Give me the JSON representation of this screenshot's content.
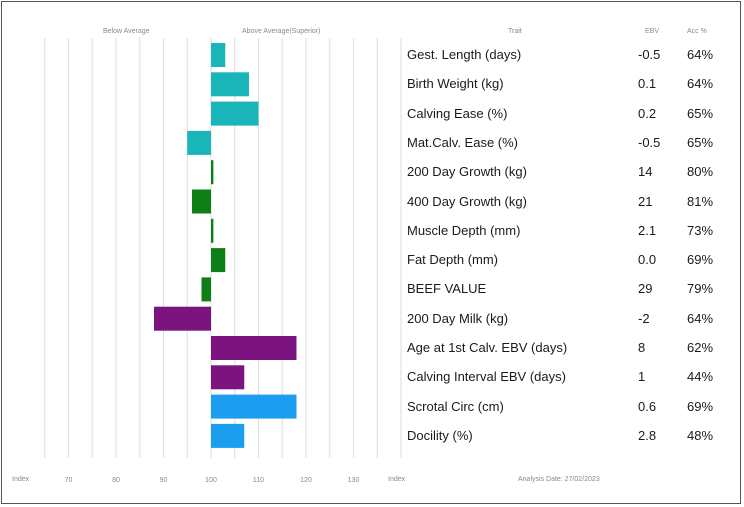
{
  "colors": {
    "Birth and calving": "#1ab5b8",
    "Growth and carcase": "#0e7f16",
    "Maternal": "#7c1480",
    "Fertility and temperament": "#1b9df0",
    "gridline": "#dedede",
    "text": "#1a1a1a",
    "muted": "#8a8a8a"
  },
  "headers": {
    "below_average": "Below Average",
    "above_average": "Above Average(Superior)",
    "trait": "Trait",
    "ebv": "EBV",
    "acc": "Acc %"
  },
  "footer": {
    "index_left": "Index",
    "index_right": "Index",
    "analysis_date": "Analysis Date: 27/02/2023"
  },
  "chart_data": {
    "type": "bar",
    "orientation": "horizontal",
    "baseline": 100,
    "xlim": [
      63,
      145
    ],
    "x_ticks": [
      "70",
      "80",
      "90",
      "100",
      "110",
      "120",
      "130"
    ],
    "grid": true,
    "categories": [
      "Gest. Length (days)",
      "Birth Weight (kg)",
      "Calving Ease (%)",
      "Mat.Calv. Ease (%)",
      "200 Day Growth (kg)",
      "400 Day Growth (kg)",
      "Muscle Depth (mm)",
      "Fat Depth (mm)",
      "BEEF VALUE",
      "200 Day Milk (kg)",
      "Age at 1st Calv. EBV (days)",
      "Calving Interval EBV (days)",
      "Scrotal Circ (cm)",
      "Docility (%)"
    ],
    "values": [
      103,
      108,
      110,
      95,
      100.5,
      96,
      100.5,
      103,
      98,
      88,
      118,
      107,
      118,
      107
    ],
    "groups": [
      "Birth and calving",
      "Birth and calving",
      "Birth and calving",
      "Birth and calving",
      "Growth and carcase",
      "Growth and carcase",
      "Growth and carcase",
      "Growth and carcase",
      "Growth and carcase",
      "Maternal",
      "Maternal",
      "Maternal",
      "Fertility and temperament",
      "Fertility and temperament"
    ],
    "ebv": [
      "-0.5",
      "0.1",
      "0.2",
      "-0.5",
      "14",
      "21",
      "2.1",
      "0.0",
      "29",
      "-2",
      "8",
      "1",
      "0.6",
      "2.8"
    ],
    "acc": [
      "64%",
      "64%",
      "65%",
      "65%",
      "80%",
      "81%",
      "73%",
      "69%",
      "79%",
      "64%",
      "62%",
      "44%",
      "69%",
      "48%"
    ]
  }
}
